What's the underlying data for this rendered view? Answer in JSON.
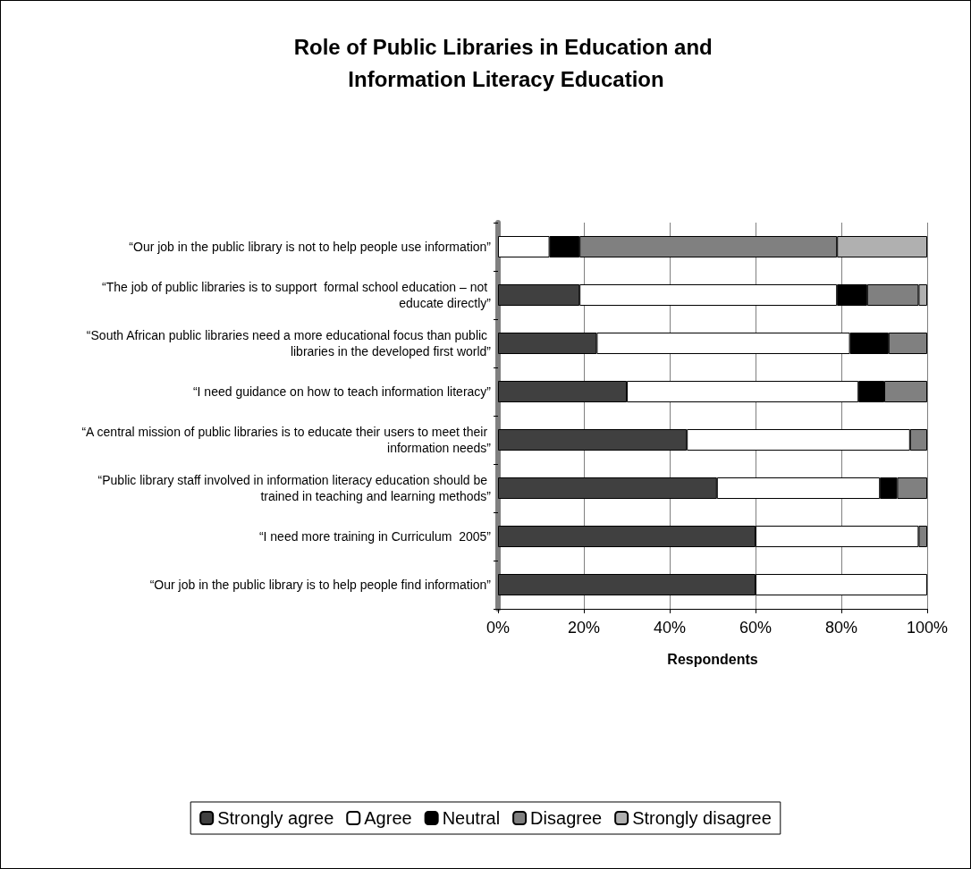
{
  "chart_data": {
    "type": "bar",
    "orientation": "horizontal",
    "stacked": true,
    "title": "Role of Public Libraries in Education and Information Literacy Education",
    "xlabel": "Respondents",
    "categories": [
      "“Our job in the public library is not to help people use information”",
      "“The job of public libraries is to support  formal school education – not educate directly”",
      "“South African public libraries need a more educational focus than public libraries in the developed first world”",
      "“I need guidance on how to teach information literacy”",
      "“A central mission of public libraries is to educate their users to meet their information needs”",
      "“Public library staff involved in information literacy education should be trained in teaching and learning methods”",
      "“I need more training in Curriculum  2005”",
      "“Our job in the public library is to help people find information”"
    ],
    "series": [
      {
        "name": "Strongly agree",
        "color": "#404040",
        "values": [
          0,
          19,
          23,
          30,
          44,
          51,
          60,
          60
        ]
      },
      {
        "name": "Agree",
        "color": "#ffffff",
        "values": [
          12,
          60,
          59,
          54,
          52,
          38,
          38,
          40
        ]
      },
      {
        "name": "Neutral",
        "color": "#000000",
        "values": [
          7,
          7,
          9,
          6,
          0,
          4,
          0,
          0
        ]
      },
      {
        "name": "Disagree",
        "color": "#808080",
        "values": [
          60,
          12,
          9,
          10,
          4,
          7,
          2,
          0
        ]
      },
      {
        "name": "Strongly disagree",
        "color": "#b0b0b0",
        "values": [
          21,
          2,
          0,
          0,
          0,
          0,
          0,
          0
        ]
      }
    ],
    "xlim": [
      0,
      100
    ],
    "xticks": [
      {
        "value": 0,
        "label": "0%"
      },
      {
        "value": 20,
        "label": "20%"
      },
      {
        "value": 40,
        "label": "40%"
      },
      {
        "value": 60,
        "label": "60%"
      },
      {
        "value": 80,
        "label": "80%"
      },
      {
        "value": 100,
        "label": "100%"
      }
    ],
    "grid": "x",
    "legend": "bottom"
  }
}
